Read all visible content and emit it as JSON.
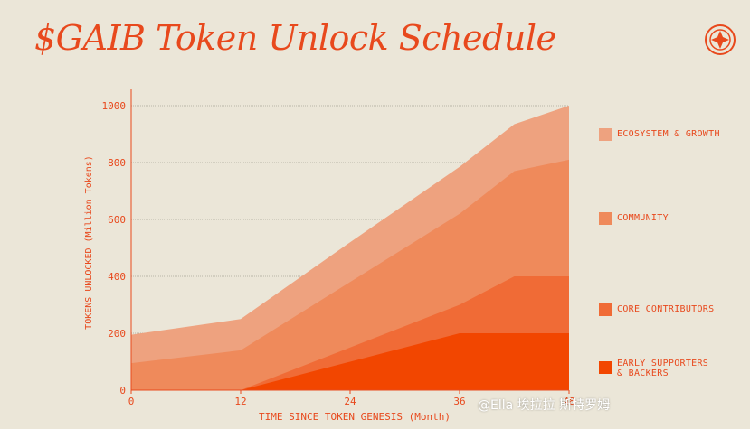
{
  "header": {
    "title": "$GAIB Token Unlock Schedule",
    "logo_icon": "gaib-logo-icon"
  },
  "colors": {
    "background": "#ebe6d8",
    "accent": "#e8491d",
    "ecosystem_growth": "#eea27f",
    "community": "#ef8a5b",
    "core_contributors": "#f06b36",
    "early_supporters_backers": "#f24600"
  },
  "chart_data": {
    "type": "area",
    "stacked": true,
    "title": "$GAIB Token Unlock Schedule",
    "xlabel": "TIME SINCE TOKEN GENESIS (Month)",
    "ylabel": "TOKENS UNLOCKED (Million Tokens)",
    "x": [
      0,
      12,
      24,
      36,
      42,
      48
    ],
    "xticks": [
      "0",
      "12",
      "24",
      "36",
      "48"
    ],
    "xlim": [
      0,
      48
    ],
    "yticks": [
      "0",
      "200",
      "400",
      "600",
      "800",
      "1000"
    ],
    "ylim": [
      0,
      1000
    ],
    "grid": "horizontal",
    "legend_position": "right",
    "series": [
      {
        "name": "EARLY SUPPORTERS\n& BACKERS",
        "key": "early_supporters_backers",
        "cumulative": [
          0,
          0,
          100,
          200,
          200,
          200
        ]
      },
      {
        "name": "CORE CONTRIBUTORS",
        "key": "core_contributors",
        "cumulative": [
          0,
          0,
          150,
          300,
          400,
          400
        ]
      },
      {
        "name": "COMMUNITY",
        "key": "community",
        "cumulative": [
          95,
          140,
          380,
          620,
          770,
          810
        ]
      },
      {
        "name": "ECOSYSTEM & GROWTH",
        "key": "ecosystem_growth",
        "cumulative": [
          195,
          250,
          520,
          785,
          935,
          1000
        ]
      }
    ]
  },
  "legend": [
    {
      "label": "ECOSYSTEM & GROWTH",
      "color_key": "ecosystem_growth"
    },
    {
      "label": "COMMUNITY",
      "color_key": "community"
    },
    {
      "label": "CORE CONTRIBUTORS",
      "color_key": "core_contributors"
    },
    {
      "label": "EARLY SUPPORTERS\n& BACKERS",
      "color_key": "early_supporters_backers"
    }
  ],
  "watermark": {
    "text": "@Ella 埃拉拉 斯特罗姆"
  }
}
